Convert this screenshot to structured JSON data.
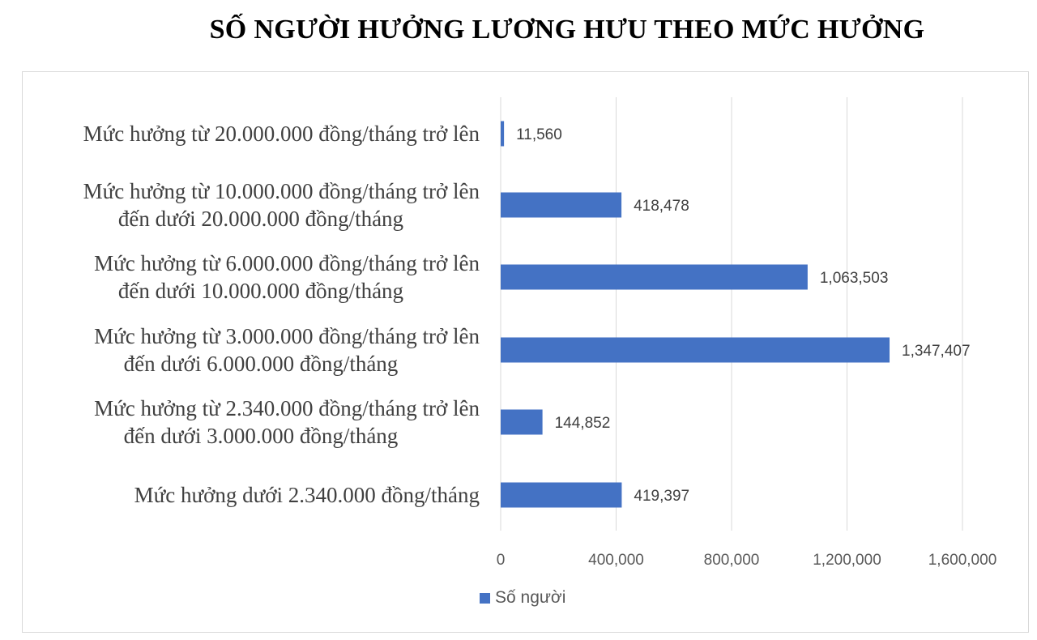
{
  "chart_data": {
    "type": "bar",
    "orientation": "horizontal",
    "title": "SỐ NGƯỜI HƯỞNG LƯƠNG HƯU THEO MỨC HƯỞNG",
    "categories": [
      [
        "Mức hưởng từ 20.000.000 đồng/tháng trở lên"
      ],
      [
        "Mức hưởng từ 10.000.000 đồng/tháng trở lên",
        "đến dưới 20.000.000 đồng/tháng"
      ],
      [
        "Mức hưởng từ 6.000.000 đồng/tháng trở lên",
        "đến dưới 10.000.000 đồng/tháng"
      ],
      [
        "Mức hưởng từ 3.000.000 đồng/tháng trở lên",
        "đến dưới 6.000.000 đồng/tháng"
      ],
      [
        "Mức hưởng từ 2.340.000 đồng/tháng trở lên",
        "đến dưới 3.000.000 đồng/tháng"
      ],
      [
        "Mức hưởng dưới 2.340.000 đồng/tháng"
      ]
    ],
    "series": [
      {
        "name": "Số người",
        "color": "#4472c4",
        "values": [
          11560,
          418478,
          1063503,
          1347407,
          144852,
          419397
        ],
        "value_labels": [
          "11,560",
          "418,478",
          "1,063,503",
          "1,347,407",
          "144,852",
          "419,397"
        ]
      }
    ],
    "xlim": [
      0,
      1600000
    ],
    "xticks": [
      0,
      400000,
      800000,
      1200000,
      1600000
    ],
    "xtick_labels": [
      "0",
      "400,000",
      "800,000",
      "1,200,000",
      "1,600,000"
    ],
    "grid": "vertical",
    "legend_position": "bottom"
  }
}
